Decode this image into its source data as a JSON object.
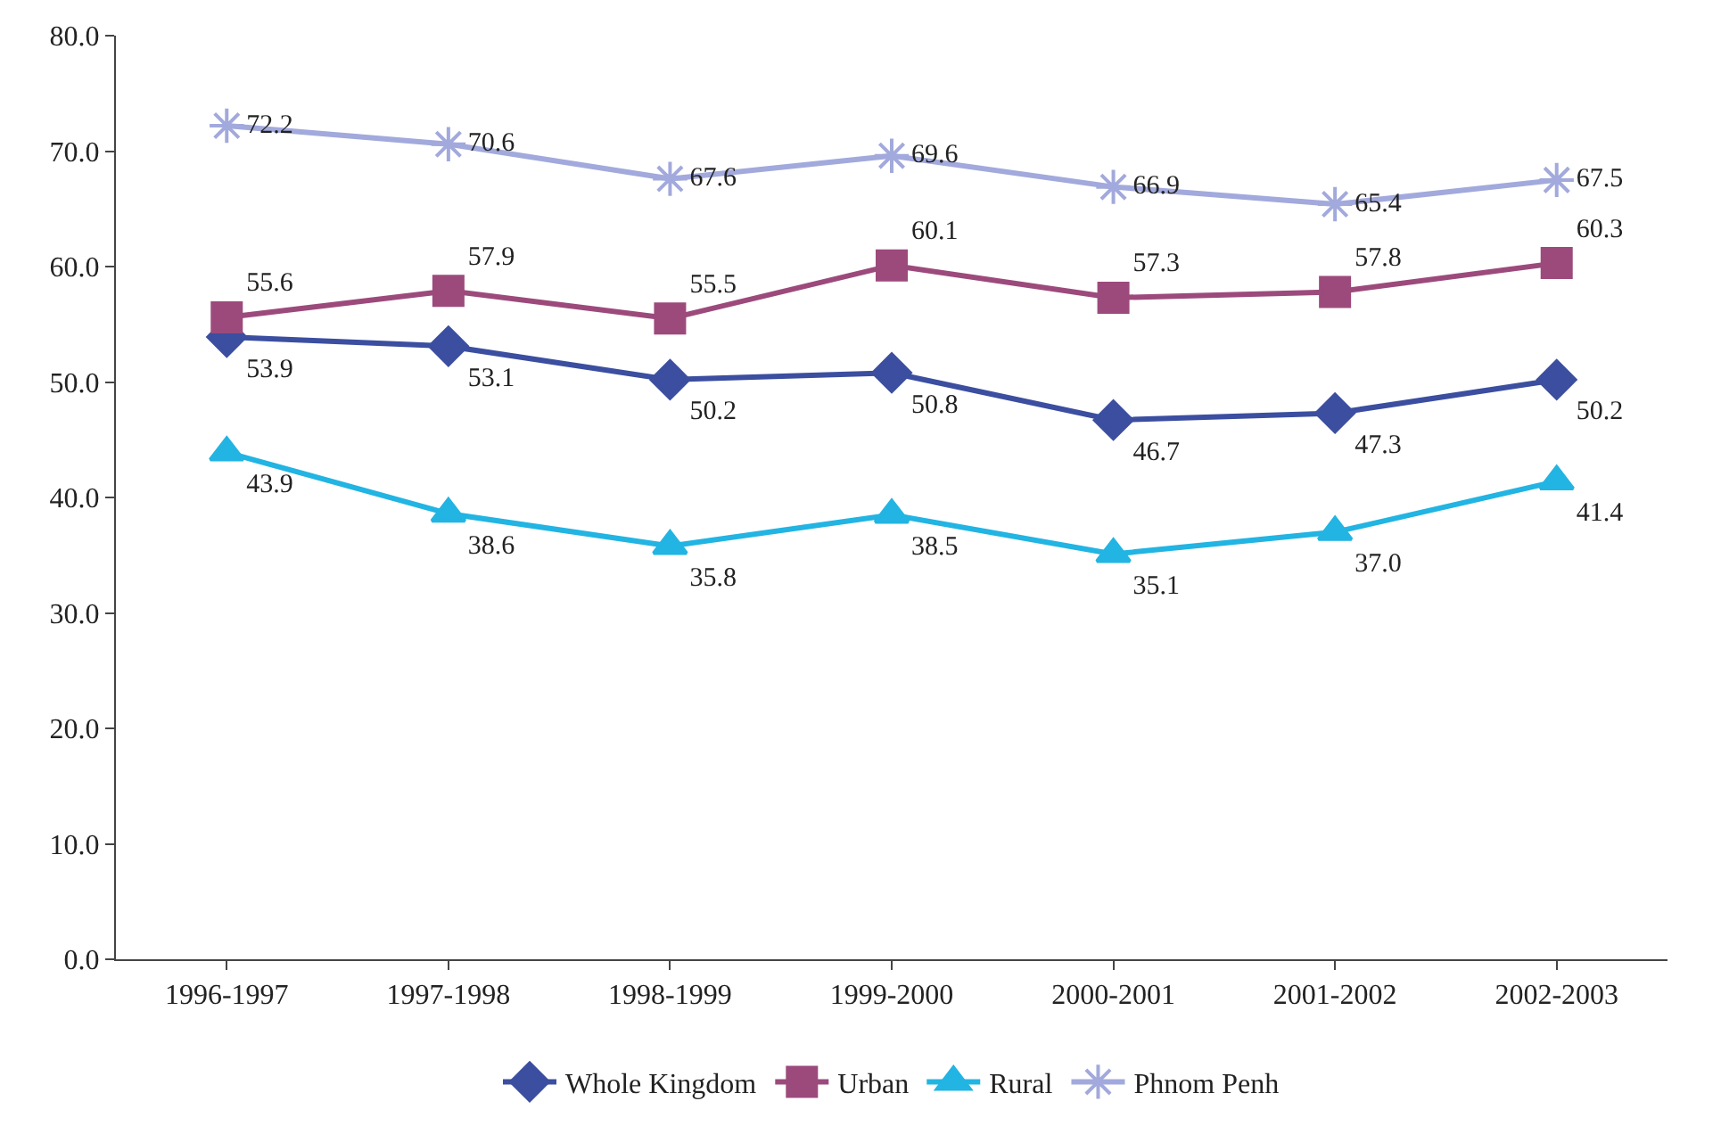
{
  "chart_data": {
    "type": "line",
    "categories": [
      "1996-1997",
      "1997-1998",
      "1998-1999",
      "1999-2000",
      "2000-2001",
      "2001-2002",
      "2002-2003"
    ],
    "series": [
      {
        "name": "Whole Kingdom",
        "color": "#3b4ea0",
        "marker": "diamond",
        "values": [
          53.9,
          53.1,
          50.2,
          50.8,
          46.7,
          47.3,
          50.2
        ],
        "value_labels": [
          "53.9",
          "53.1",
          "50.2",
          "50.8",
          "46.7",
          "47.3",
          "50.2"
        ]
      },
      {
        "name": "Urban",
        "color": "#9c4a7c",
        "marker": "square",
        "values": [
          55.6,
          57.9,
          55.5,
          60.1,
          57.3,
          57.8,
          60.3
        ],
        "value_labels": [
          "55.6",
          "57.9",
          "55.5",
          "60.1",
          "57.3",
          "57.8",
          "60.3"
        ]
      },
      {
        "name": "Rural",
        "color": "#22b4e2",
        "marker": "triangle",
        "values": [
          43.9,
          38.6,
          35.8,
          38.5,
          35.1,
          37.0,
          41.4
        ],
        "value_labels": [
          "43.9",
          "38.6",
          "35.8",
          "38.5",
          "35.1",
          "37.0",
          "41.4"
        ]
      },
      {
        "name": "Phnom Penh",
        "color": "#a2a9dc",
        "marker": "cross",
        "values": [
          72.2,
          70.6,
          67.6,
          69.6,
          66.9,
          65.4,
          67.5
        ],
        "value_labels": [
          "72.2",
          "70.6",
          "67.6",
          "69.6",
          "66.9",
          "65.4",
          "67.5"
        ]
      }
    ],
    "ylim": [
      0,
      80
    ],
    "yticks": [
      {
        "value": 0,
        "label": "0.0"
      },
      {
        "value": 10,
        "label": "10.0"
      },
      {
        "value": 20,
        "label": "20.0"
      },
      {
        "value": 30,
        "label": "30.0"
      },
      {
        "value": 40,
        "label": "40.0"
      },
      {
        "value": 50,
        "label": "50.0"
      },
      {
        "value": 60,
        "label": "60.0"
      },
      {
        "value": 70,
        "label": "70.0"
      },
      {
        "value": 80,
        "label": "80.0"
      }
    ],
    "legend": "bottom",
    "line_style": "solid"
  }
}
